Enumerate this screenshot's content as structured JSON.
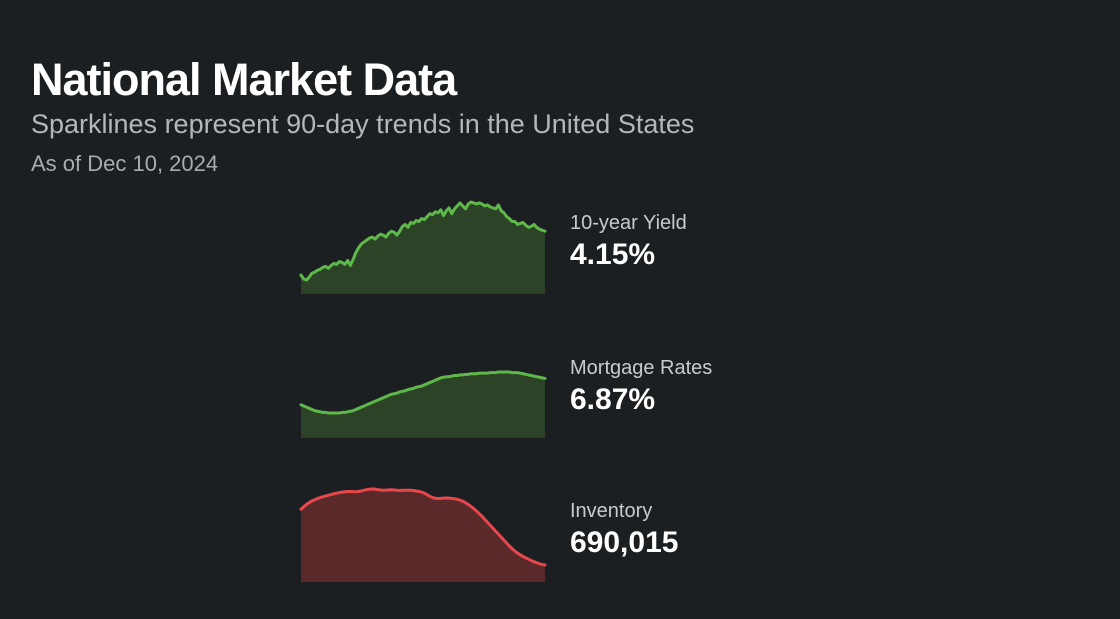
{
  "header": {
    "title": "National Market Data",
    "subtitle": "Sparklines represent 90-day trends in the United States",
    "as_of": "As of Dec 10, 2024"
  },
  "colors": {
    "background": "#1c1f22",
    "up_line": "#5fb84a",
    "up_fill": "#2c4327",
    "down_line": "#e8474c",
    "down_fill": "#5a2a2b"
  },
  "chart_data": [
    {
      "type": "area",
      "name": "10-year Yield",
      "label": "10-year Yield",
      "value_text": "4.15%",
      "trend": "up",
      "x_days": 90,
      "values": [
        3.7,
        3.66,
        3.65,
        3.68,
        3.72,
        3.73,
        3.75,
        3.76,
        3.78,
        3.79,
        3.77,
        3.8,
        3.82,
        3.81,
        3.84,
        3.83,
        3.81,
        3.85,
        3.8,
        3.86,
        3.93,
        3.98,
        4.02,
        4.04,
        4.06,
        4.08,
        4.09,
        4.07,
        4.1,
        4.12,
        4.11,
        4.09,
        4.13,
        4.15,
        4.14,
        4.11,
        4.15,
        4.2,
        4.22,
        4.19,
        4.24,
        4.23,
        4.26,
        4.25,
        4.28,
        4.27,
        4.3,
        4.33,
        4.32,
        4.35,
        4.34,
        4.37,
        4.31,
        4.36,
        4.39,
        4.33,
        4.38,
        4.41,
        4.44,
        4.41,
        4.38,
        4.43,
        4.45,
        4.44,
        4.43,
        4.44,
        4.43,
        4.41,
        4.42,
        4.4,
        4.39,
        4.38,
        4.42,
        4.36,
        4.34,
        4.3,
        4.28,
        4.25,
        4.25,
        4.22,
        4.23,
        4.24,
        4.21,
        4.19,
        4.2,
        4.22,
        4.19,
        4.17,
        4.16,
        4.15
      ]
    },
    {
      "type": "area",
      "name": "Mortgage Rates",
      "label": "Mortgage Rates",
      "value_text": "6.87%",
      "trend": "up",
      "x_days": 90,
      "values": [
        6.42,
        6.4,
        6.38,
        6.36,
        6.34,
        6.32,
        6.31,
        6.3,
        6.29,
        6.29,
        6.28,
        6.28,
        6.28,
        6.28,
        6.28,
        6.29,
        6.29,
        6.3,
        6.31,
        6.32,
        6.34,
        6.36,
        6.38,
        6.4,
        6.42,
        6.44,
        6.46,
        6.48,
        6.5,
        6.52,
        6.54,
        6.56,
        6.58,
        6.6,
        6.61,
        6.62,
        6.64,
        6.65,
        6.66,
        6.68,
        6.69,
        6.7,
        6.72,
        6.73,
        6.74,
        6.76,
        6.78,
        6.8,
        6.82,
        6.84,
        6.86,
        6.88,
        6.89,
        6.9,
        6.9,
        6.91,
        6.92,
        6.92,
        6.93,
        6.93,
        6.94,
        6.94,
        6.95,
        6.95,
        6.95,
        6.96,
        6.96,
        6.96,
        6.96,
        6.97,
        6.97,
        6.97,
        6.98,
        6.98,
        6.98,
        6.98,
        6.98,
        6.97,
        6.97,
        6.97,
        6.96,
        6.95,
        6.94,
        6.93,
        6.92,
        6.91,
        6.9,
        6.89,
        6.88,
        6.87
      ]
    },
    {
      "type": "area",
      "name": "Inventory",
      "label": "Inventory",
      "value_text": "690,015",
      "trend": "down",
      "x_days": 90,
      "values": [
        737000,
        739000,
        741000,
        742500,
        744000,
        745000,
        746000,
        746800,
        747500,
        748200,
        748800,
        749400,
        750000,
        750500,
        751000,
        751400,
        751700,
        751900,
        752000,
        751800,
        751700,
        751900,
        752400,
        753000,
        753500,
        753800,
        754000,
        753900,
        753500,
        753200,
        753000,
        753100,
        753300,
        753400,
        753200,
        752900,
        752800,
        752900,
        753000,
        753100,
        753000,
        752700,
        752300,
        751900,
        751400,
        750500,
        749200,
        747800,
        746800,
        746200,
        746000,
        746100,
        746300,
        746400,
        746300,
        746100,
        745800,
        745300,
        744600,
        743700,
        742500,
        741000,
        739300,
        737500,
        735500,
        733300,
        731000,
        728500,
        726000,
        723500,
        721000,
        718500,
        716000,
        713500,
        711000,
        708500,
        706000,
        703800,
        701800,
        700000,
        698500,
        697200,
        696000,
        694900,
        693800,
        692800,
        691900,
        691100,
        690500,
        690015
      ]
    }
  ]
}
